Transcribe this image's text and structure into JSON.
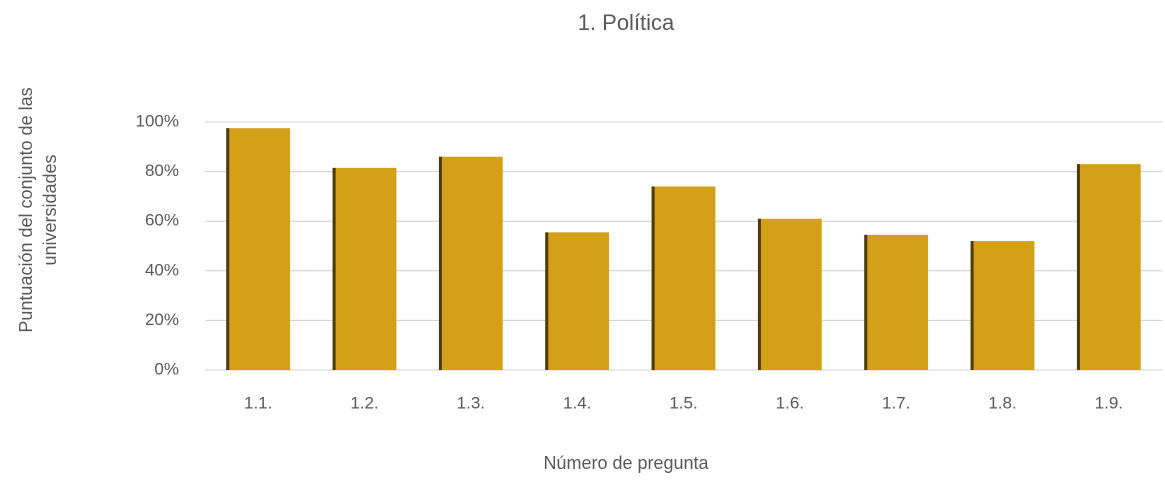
{
  "chart_data": {
    "type": "bar",
    "title": "1. Política",
    "x_label": "Número de pregunta",
    "y_label": "Puntuación del conjunto de las universidades",
    "categories": [
      "1.1.",
      "1.2.",
      "1.3.",
      "1.4.",
      "1.5.",
      "1.6.",
      "1.7.",
      "1.8.",
      "1.9."
    ],
    "values": [
      97.5,
      81.5,
      86,
      55.5,
      74,
      61,
      54.5,
      52,
      83
    ],
    "color": "#d4a017",
    "ylim": [
      0,
      100
    ],
    "yticks": [
      {
        "value": 0,
        "label": "0%"
      },
      {
        "value": 20,
        "label": "20%"
      },
      {
        "value": 40,
        "label": "40%"
      },
      {
        "value": 60,
        "label": "60%"
      },
      {
        "value": 80,
        "label": "80%"
      },
      {
        "value": 100,
        "label": "100%"
      }
    ],
    "grid": true
  }
}
